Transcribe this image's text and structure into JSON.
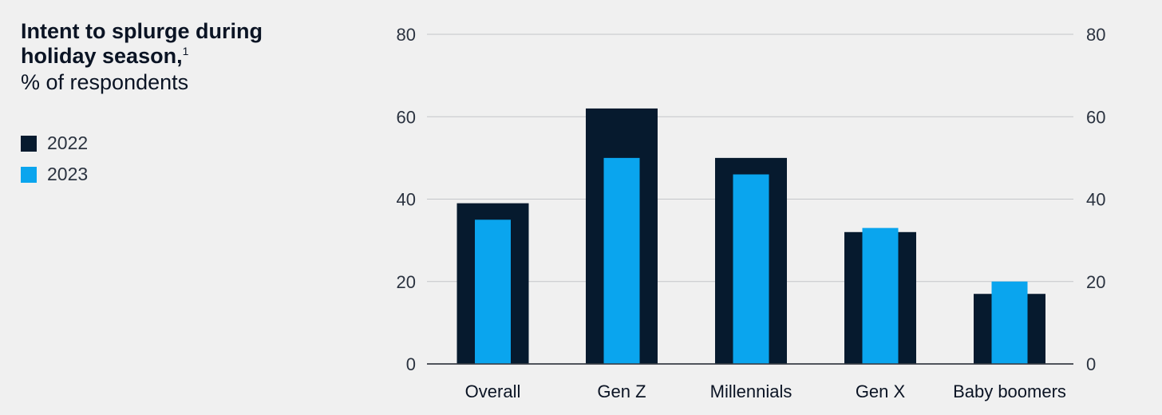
{
  "chart_data": {
    "type": "bar",
    "title": "Intent to splurge during holiday season,",
    "title_footnote": "1",
    "subtitle": "% of respondents",
    "categories": [
      "Overall",
      "Gen Z",
      "Millennials",
      "Gen X",
      "Baby boomers"
    ],
    "series": [
      {
        "name": "2022",
        "color": "#061a2e",
        "values": [
          39,
          62,
          50,
          32,
          17
        ]
      },
      {
        "name": "2023",
        "color": "#0aa5ee",
        "values": [
          35,
          50,
          46,
          33,
          20
        ]
      }
    ],
    "ylim": [
      0,
      80
    ],
    "yticks": [
      0,
      20,
      40,
      60,
      80
    ],
    "grid": true,
    "legend_position": "left",
    "secondary_axis": true
  }
}
